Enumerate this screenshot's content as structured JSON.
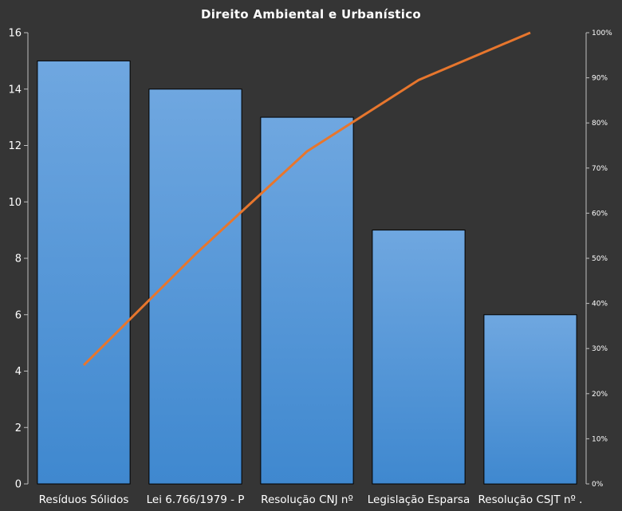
{
  "chart_data": {
    "type": "bar",
    "title": "Direito  Ambiental  e  Urbanístico",
    "categories": [
      "Resíduos Sólidos",
      "Lei 6.766/1979 - P",
      "Resolução CNJ nº",
      "Legislação Esparsa",
      "Resolução CSJT nº ."
    ],
    "values": [
      15,
      14,
      13,
      9,
      6
    ],
    "ylim": [
      0,
      16
    ],
    "yticks": [
      "0",
      "2",
      "4",
      "6",
      "8",
      "10",
      "12",
      "14",
      "16"
    ],
    "secondary_axis": {
      "ylim": [
        0,
        1
      ],
      "ticks": [
        "0%",
        "10%",
        "20%",
        "30%",
        "40%",
        "50%",
        "60%",
        "70%",
        "80%",
        "90%",
        "100%"
      ]
    },
    "line_series": {
      "type": "line",
      "axis": "secondary",
      "values": [
        0.263,
        0.509,
        0.737,
        0.895,
        1.0
      ]
    },
    "grid": false,
    "legend": "none",
    "colors": {
      "background": "#353535",
      "bar_top": "#6fa7e0",
      "bar_bottom": "#3f88cf",
      "bar_stroke": "#000000",
      "line": "#e7762d",
      "axis": "#bfbfbf",
      "text": "#ffffff"
    }
  }
}
